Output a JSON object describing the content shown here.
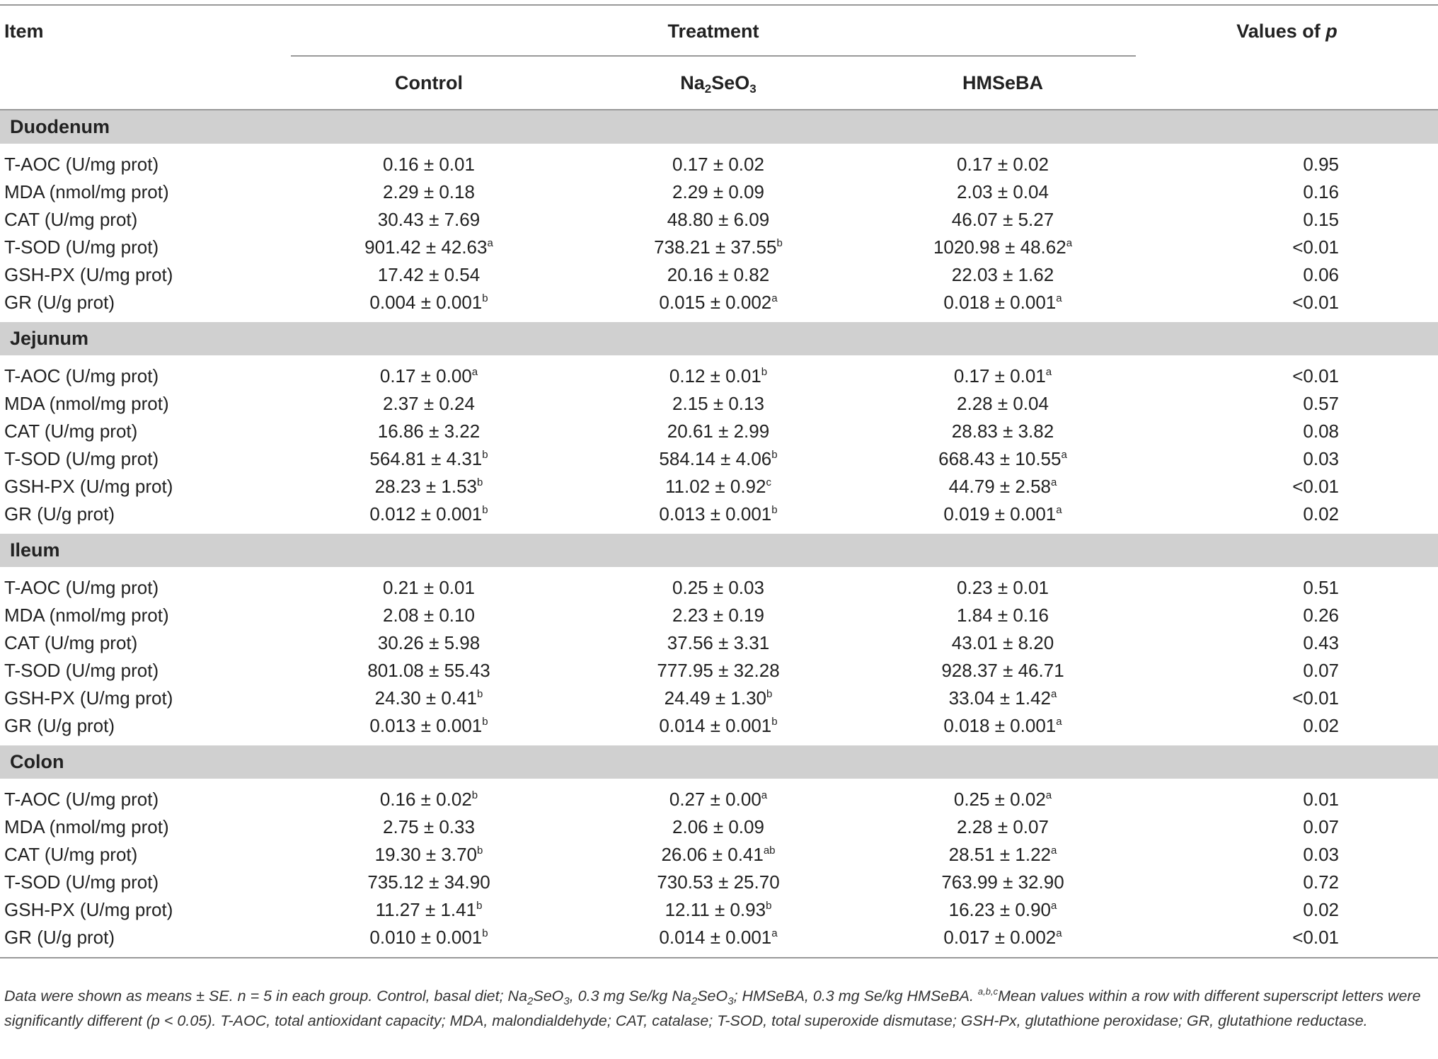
{
  "table": {
    "headers": {
      "item": "Item",
      "treatment": "Treatment",
      "p": [
        "Values of ",
        "p"
      ],
      "groups": [
        [
          "Control"
        ],
        [
          "Na",
          "2",
          "SeO",
          "3"
        ],
        [
          "HMSeBA"
        ]
      ]
    },
    "sections": [
      {
        "name": "Duodenum",
        "rows": [
          [
            "T-AOC (U/mg prot)",
            {
              "text": "0.16 ± 0.01"
            },
            {
              "text": "0.17 ± 0.02"
            },
            {
              "text": "0.17 ± 0.02"
            },
            "0.95"
          ],
          [
            "MDA (nmol/mg prot)",
            {
              "text": "2.29 ± 0.18"
            },
            {
              "text": "2.29 ± 0.09"
            },
            {
              "text": "2.03 ± 0.04"
            },
            "0.16"
          ],
          [
            "CAT (U/mg prot)",
            {
              "text": "30.43 ± 7.69"
            },
            {
              "text": "48.80 ± 6.09"
            },
            {
              "text": "46.07 ± 5.27"
            },
            "0.15"
          ],
          [
            "T-SOD (U/mg prot)",
            {
              "text": "901.42 ± 42.63",
              "sup": "a"
            },
            {
              "text": "738.21 ± 37.55",
              "sup": "b"
            },
            {
              "text": "1020.98 ± 48.62",
              "sup": "a"
            },
            "<0.01"
          ],
          [
            "GSH-PX (U/mg prot)",
            {
              "text": "17.42 ± 0.54"
            },
            {
              "text": "20.16 ± 0.82"
            },
            {
              "text": "22.03 ± 1.62"
            },
            "0.06"
          ],
          [
            "GR (U/g prot)",
            {
              "text": "0.004 ± 0.001",
              "sup": "b"
            },
            {
              "text": "0.015 ± 0.002",
              "sup": "a"
            },
            {
              "text": "0.018 ± 0.001",
              "sup": "a"
            },
            "<0.01"
          ]
        ]
      },
      {
        "name": "Jejunum",
        "rows": [
          [
            "T-AOC (U/mg prot)",
            {
              "text": "0.17 ± 0.00",
              "sup": "a"
            },
            {
              "text": "0.12 ± 0.01",
              "sup": "b"
            },
            {
              "text": "0.17 ± 0.01",
              "sup": "a"
            },
            "<0.01"
          ],
          [
            "MDA (nmol/mg prot)",
            {
              "text": "2.37 ± 0.24"
            },
            {
              "text": "2.15 ± 0.13"
            },
            {
              "text": "2.28 ± 0.04"
            },
            "0.57"
          ],
          [
            "CAT (U/mg prot)",
            {
              "text": "16.86 ± 3.22"
            },
            {
              "text": "20.61 ± 2.99"
            },
            {
              "text": "28.83 ± 3.82"
            },
            "0.08"
          ],
          [
            "T-SOD (U/mg prot)",
            {
              "text": "564.81 ± 4.31",
              "sup": "b"
            },
            {
              "text": "584.14 ± 4.06",
              "sup": "b"
            },
            {
              "text": "668.43 ± 10.55",
              "sup": "a"
            },
            "0.03"
          ],
          [
            "GSH-PX (U/mg prot)",
            {
              "text": "28.23 ± 1.53",
              "sup": "b"
            },
            {
              "text": "11.02 ± 0.92",
              "sup": "c"
            },
            {
              "text": "44.79 ± 2.58",
              "sup": "a"
            },
            "<0.01"
          ],
          [
            "GR (U/g prot)",
            {
              "text": "0.012 ± 0.001",
              "sup": "b"
            },
            {
              "text": "0.013 ± 0.001",
              "sup": "b"
            },
            {
              "text": "0.019 ± 0.001",
              "sup": "a"
            },
            "0.02"
          ]
        ]
      },
      {
        "name": "Ileum",
        "rows": [
          [
            "T-AOC (U/mg prot)",
            {
              "text": "0.21 ± 0.01"
            },
            {
              "text": "0.25 ± 0.03"
            },
            {
              "text": "0.23 ± 0.01"
            },
            "0.51"
          ],
          [
            "MDA (nmol/mg prot)",
            {
              "text": "2.08 ± 0.10"
            },
            {
              "text": "2.23 ± 0.19"
            },
            {
              "text": "1.84 ± 0.16"
            },
            "0.26"
          ],
          [
            "CAT (U/mg prot)",
            {
              "text": "30.26 ± 5.98"
            },
            {
              "text": "37.56 ± 3.31"
            },
            {
              "text": "43.01 ± 8.20"
            },
            "0.43"
          ],
          [
            "T-SOD (U/mg prot)",
            {
              "text": "801.08 ± 55.43"
            },
            {
              "text": "777.95 ± 32.28"
            },
            {
              "text": "928.37 ± 46.71"
            },
            "0.07"
          ],
          [
            "GSH-PX (U/mg prot)",
            {
              "text": "24.30 ± 0.41",
              "sup": "b"
            },
            {
              "text": "24.49 ± 1.30",
              "sup": "b"
            },
            {
              "text": "33.04 ± 1.42",
              "sup": "a"
            },
            "<0.01"
          ],
          [
            "GR (U/g prot)",
            {
              "text": "0.013 ± 0.001",
              "sup": "b"
            },
            {
              "text": "0.014 ± 0.001",
              "sup": "b"
            },
            {
              "text": "0.018 ± 0.001",
              "sup": "a"
            },
            "0.02"
          ]
        ]
      },
      {
        "name": "Colon",
        "rows": [
          [
            "T-AOC (U/mg prot)",
            {
              "text": "0.16 ± 0.02",
              "sup": "b"
            },
            {
              "text": "0.27 ± 0.00",
              "sup": "a"
            },
            {
              "text": "0.25 ± 0.02",
              "sup": "a"
            },
            "0.01"
          ],
          [
            "MDA (nmol/mg prot)",
            {
              "text": "2.75 ± 0.33"
            },
            {
              "text": "2.06 ± 0.09"
            },
            {
              "text": "2.28 ± 0.07"
            },
            "0.07"
          ],
          [
            "CAT (U/mg prot)",
            {
              "text": "19.30 ± 3.70",
              "sup": "b"
            },
            {
              "text": "26.06 ± 0.41",
              "sup": "ab"
            },
            {
              "text": "28.51 ± 1.22",
              "sup": "a"
            },
            "0.03"
          ],
          [
            "T-SOD (U/mg prot)",
            {
              "text": "735.12 ± 34.90"
            },
            {
              "text": "730.53 ± 25.70"
            },
            {
              "text": "763.99 ± 32.90"
            },
            "0.72"
          ],
          [
            "GSH-PX (U/mg prot)",
            {
              "text": "11.27 ± 1.41",
              "sup": "b"
            },
            {
              "text": "12.11 ± 0.93",
              "sup": "b"
            },
            {
              "text": "16.23 ± 0.90",
              "sup": "a"
            },
            "0.02"
          ],
          [
            "GR (U/g prot)",
            {
              "text": "0.010 ± 0.001",
              "sup": "b"
            },
            {
              "text": "0.014 ± 0.001",
              "sup": "a"
            },
            {
              "text": "0.017 ± 0.002",
              "sup": "a"
            },
            "<0.01"
          ]
        ]
      }
    ]
  },
  "footnote": {
    "parts": [
      "Data were shown as means ± SE. n = 5 in each group. Control, basal diet; Na",
      "2",
      "SeO",
      "3",
      ", 0.3 mg Se/kg Na",
      "2",
      "SeO",
      "3",
      "; HMSeBA, 0.3 mg Se/kg HMSeBA. ",
      "a,b,c",
      "Mean values within a row with different superscript letters were significantly different (p < 0.05). T-AOC, total antioxidant capacity; MDA, malondialdehyde; CAT, catalase; T-SOD, total superoxide dismutase; GSH-Px, glutathione peroxidase; GR, glutathione reductase."
    ]
  }
}
